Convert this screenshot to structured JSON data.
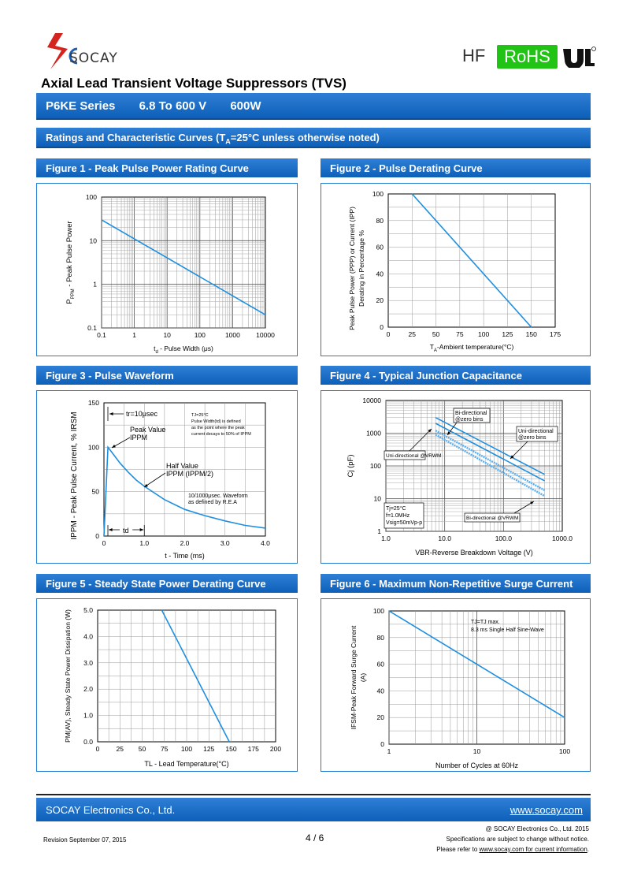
{
  "header": {
    "logo_text": "SOCAY",
    "hf": "HF",
    "rohs": "RoHS",
    "colors": {
      "brand_blue": "#1f7ad1",
      "rohs_green": "#21c414",
      "curve": "#1e8fe0"
    }
  },
  "title": "Axial Lead Transient Voltage Suppressors (TVS)",
  "series": {
    "name": "P6KE Series",
    "voltage": "6.8 To 600 V",
    "power": "600W"
  },
  "ratings": {
    "prefix": "Ratings and Characteristic Curves (T",
    "sub": "A",
    "suffix": "=25°C unless otherwise noted)"
  },
  "figures": {
    "fig1": {
      "title": "Figure 1 - Peak Pulse Power Rating Curve"
    },
    "fig2": {
      "title": "Figure 2 - Pulse Derating Curve"
    },
    "fig3": {
      "title": "Figure 3 - Pulse Waveform"
    },
    "fig4": {
      "title": "Figure 4 - Typical Junction Capacitance"
    },
    "fig5": {
      "title": "Figure 5 - Steady State Power Derating Curve"
    },
    "fig6": {
      "title": "Figure 6 - Maximum Non-Repetitive Surge Current"
    }
  },
  "chart_data": [
    {
      "id": "fig1",
      "type": "line",
      "xscale": "log",
      "yscale": "log",
      "xlabel": "t",
      "xlabel_sub": "d",
      "xlabel_rest": " - Pulse Width (μs)",
      "ylabel": "P",
      "ylabel_sub": "PPM",
      "ylabel_rest": "  -  Peak  Pulse  Power",
      "xlim": [
        0.1,
        10000
      ],
      "ylim": [
        0.1,
        100
      ],
      "xticks": [
        "0.1",
        "1",
        "10",
        "100",
        "1000",
        "10000"
      ],
      "yticks": [
        "0.1",
        "1",
        "10",
        "100"
      ],
      "x": [
        0.1,
        10000
      ],
      "y": [
        30,
        0.2
      ]
    },
    {
      "id": "fig2",
      "type": "line",
      "xlabel": "T",
      "xlabel_sub": "A",
      "xlabel_rest": "-Ambient temperature(°C)",
      "ylabel_line1": "Peak Pulse Power (PPP) or Current (IPP)",
      "ylabel_line2": "Derating in Percentage %",
      "xlim": [
        0,
        175
      ],
      "ylim": [
        0,
        100
      ],
      "xticks": [
        "0",
        "25",
        "50",
        "75",
        "100",
        "125",
        "150",
        "175"
      ],
      "yticks": [
        "0",
        "20",
        "40",
        "60",
        "80",
        "100"
      ],
      "x": [
        25,
        150
      ],
      "y": [
        100,
        0
      ]
    },
    {
      "id": "fig3",
      "type": "line",
      "xlabel": "t - Time (ms)",
      "ylabel": "IPPM - Peak Pulse Current, % IRSM",
      "xlim": [
        0,
        4.0
      ],
      "ylim": [
        0,
        150
      ],
      "xticks": [
        "0",
        "1.0",
        "2.0",
        "3.0",
        "4.0"
      ],
      "yticks": [
        "0",
        "50",
        "100",
        "150"
      ],
      "x": [
        0,
        0.1,
        0.2,
        0.4,
        0.6,
        0.8,
        1.0,
        1.5,
        2.0,
        2.5,
        3.0,
        3.5,
        4.0
      ],
      "y": [
        0,
        100,
        94,
        82,
        72,
        63,
        56,
        41,
        30,
        23,
        17,
        12,
        9
      ],
      "annotations": {
        "tr": "tr=10μsec",
        "peak1": "Peak Value",
        "peak2": "IPPM",
        "half1": "Half Value",
        "half2": "IPPM (IPPM/2)",
        "note1": "TJ=25°C",
        "note2": "Pulse Width(td) is defined",
        "note3": "as the point where the peak",
        "note4": "current decays to 50% of IPPM",
        "wave1": "10/1000μsec. Waveform",
        "wave2": "as defined by R.E.A",
        "td": "td"
      }
    },
    {
      "id": "fig4",
      "type": "line",
      "xscale": "log",
      "yscale": "log",
      "xlabel": "VBR-Reverse Breakdown Voltage (V)",
      "ylabel": "Cj (pF)",
      "xlim": [
        1.0,
        1000.0
      ],
      "ylim": [
        1,
        10000
      ],
      "xticks": [
        "1.0",
        "10.0",
        "100.0",
        "1000.0"
      ],
      "yticks": [
        "1",
        "10",
        "100",
        "1000",
        "10000"
      ],
      "series": [
        {
          "name": "Bi-directional @zero bins",
          "x": [
            7,
            500
          ],
          "y": [
            3000,
            55
          ]
        },
        {
          "name": "Uni-directional @zero bins",
          "x": [
            7,
            500
          ],
          "y": [
            2000,
            35
          ]
        },
        {
          "name": "Uni-directional @VRWM",
          "x": [
            7,
            500
          ],
          "y": [
            1200,
            18
          ]
        },
        {
          "name": "Bi-directional @VRWM",
          "x": [
            7,
            500
          ],
          "y": [
            900,
            12
          ]
        }
      ],
      "labels": {
        "bi_zero1": "Bi-directional",
        "bi_zero2": "@zero bins",
        "uni_zero1": "Uni-directional",
        "uni_zero2": "@zero bins",
        "uni_vrwm": "Uni-directional @VRWM",
        "bi_vrwm": "Bi-directional @VRWM",
        "cond1": "Tj=25°C",
        "cond2": "f=1.0MHz",
        "cond3": "Vsig=50mVp-p"
      }
    },
    {
      "id": "fig5",
      "type": "line",
      "xlabel": "TL - Lead Temperature(°C)",
      "ylabel": "PM(AV), Steady State Power Dissipation (W)",
      "xlim": [
        0,
        200
      ],
      "ylim": [
        0,
        5.0
      ],
      "xticks": [
        "0",
        "25",
        "50",
        "75",
        "100",
        "125",
        "150",
        "175",
        "200"
      ],
      "yticks": [
        "0.0",
        "1.0",
        "2.0",
        "3.0",
        "4.0",
        "5.0"
      ],
      "x": [
        72,
        148
      ],
      "y": [
        5.0,
        0
      ]
    },
    {
      "id": "fig6",
      "type": "line",
      "xscale": "log",
      "xlabel": "Number of Cycles at 60Hz",
      "ylabel_line1": "IFSM-Peak Forward Surge Current",
      "ylabel_line2": "(A)",
      "xlim": [
        1,
        100
      ],
      "ylim": [
        0,
        100
      ],
      "xticks": [
        "1",
        "10",
        "100"
      ],
      "yticks": [
        "0",
        "20",
        "40",
        "60",
        "80",
        "100"
      ],
      "x": [
        1,
        100
      ],
      "y": [
        100,
        20
      ],
      "annotations": {
        "note1": "TJ=TJ max.",
        "note2": "8.3 ms Single Half Sine-Wave"
      }
    }
  ],
  "footer": {
    "company": "SOCAY Electronics Co., Ltd.",
    "website": "www.socay.com",
    "revision": "Revision September 07, 2015",
    "page": "4 / 6",
    "copyright": "@ SOCAY Electronics Co., Ltd. 2015",
    "notice": "Specifications are subject to change without notice.",
    "refer_prefix": "Please refer to ",
    "refer_link": "www.socay.com for current information",
    "refer_suffix": "."
  }
}
